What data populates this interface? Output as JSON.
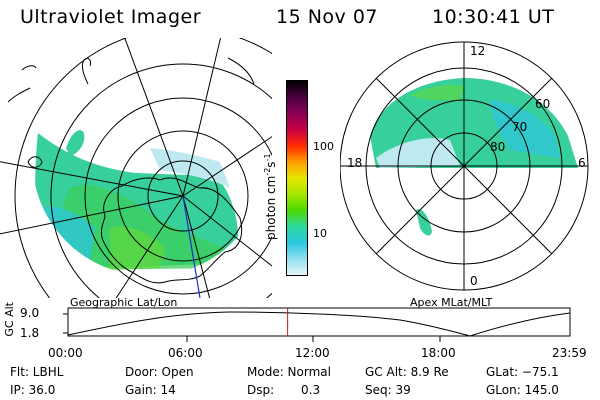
{
  "header": {
    "instrument": "Ultraviolet Imager",
    "date": "15 Nov 07",
    "time": "10:30:41 UT"
  },
  "colorbar": {
    "label": "photon cm",
    "label_sup1": "-2",
    "label_mid": "s",
    "label_sup2": "-1",
    "ticks": [
      "100",
      "10"
    ],
    "colors": [
      "#000000",
      "#4b0040",
      "#8a0056",
      "#c70045",
      "#ff2a00",
      "#ff9c00",
      "#e8e600",
      "#a6e600",
      "#4dd900",
      "#2bd9a0",
      "#29c8df",
      "#8fe0ee",
      "#e8f6f8"
    ]
  },
  "left_panel": {
    "caption": "Geographic Lat/Lon"
  },
  "right_panel": {
    "caption": "Apex MLat/MLT",
    "mlt_labels": [
      "12",
      "18",
      "6",
      "0"
    ],
    "lat_labels": [
      "60",
      "70",
      "80"
    ]
  },
  "altitude_plot": {
    "ylabel": "GC Alt",
    "yticks": [
      "9.0",
      "1.8"
    ],
    "xticks": [
      "00:00",
      "06:00",
      "12:00",
      "18:00",
      "23:59"
    ],
    "current_time_fraction": 0.4375
  },
  "status": {
    "filter": "Flt: LBHL",
    "door": "Door: Open",
    "mode": "Mode: Normal",
    "gc_alt": "GC Alt: 8.9 Re",
    "glat": "GLat: −75.1",
    "ip": "IP: 36.0",
    "gain": "Gain: 14",
    "dsp_label": "Dsp:",
    "dsp_value": "0.3",
    "seq": "Seq: 39",
    "glon": "GLon: 145.0"
  }
}
